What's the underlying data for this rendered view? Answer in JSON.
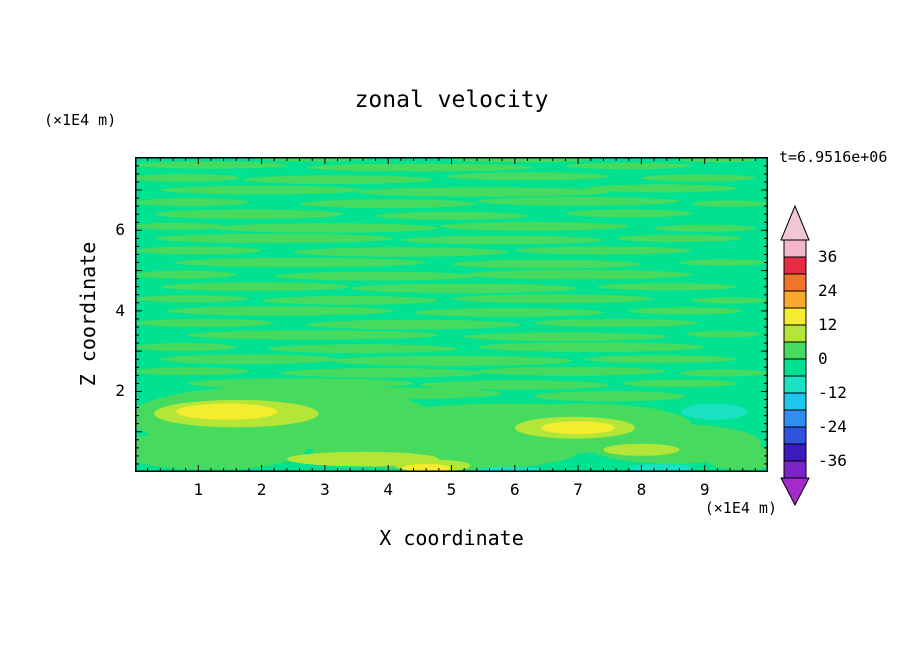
{
  "chart_data": {
    "type": "contour",
    "title": "zonal velocity",
    "timestamp": "t=6.9516e+06",
    "x_axis": {
      "label": "X coordinate",
      "unit": "(×1E4 m)",
      "min": 0,
      "max": 10,
      "labeled_ticks": [
        1,
        2,
        3,
        4,
        5,
        6,
        7,
        8,
        9
      ],
      "minor_tick_step": 0.2,
      "major_tick_step": 1
    },
    "z_axis": {
      "label": "Z coordinate",
      "unit": "(×1E4 m)",
      "min": 0,
      "max": 7.82,
      "labeled_ticks": [
        2,
        4,
        6
      ],
      "minor_tick_step": 0.2,
      "major_tick_step": 1
    },
    "colorbar": {
      "tick_labels": [
        "36",
        "24",
        "12",
        "0",
        "-12",
        "-24",
        "-36"
      ],
      "level_boundaries": [
        42,
        36,
        30,
        24,
        18,
        12,
        6,
        0,
        -6,
        -12,
        -18,
        -24,
        -30,
        -36,
        -42
      ],
      "above_max_color": "#F2C6D6",
      "below_min_color": "#A32CCB",
      "segments": [
        {
          "range": [
            36,
            42
          ],
          "color": "#F3B6CA"
        },
        {
          "range": [
            30,
            36
          ],
          "color": "#E62B44"
        },
        {
          "range": [
            24,
            30
          ],
          "color": "#F2742B"
        },
        {
          "range": [
            18,
            24
          ],
          "color": "#F7AA2C"
        },
        {
          "range": [
            12,
            18
          ],
          "color": "#F4EC2E"
        },
        {
          "range": [
            6,
            12
          ],
          "color": "#B4E637"
        },
        {
          "range": [
            0,
            6
          ],
          "color": "#46DB5E"
        },
        {
          "range": [
            -6,
            0
          ],
          "color": "#00E191"
        },
        {
          "range": [
            -12,
            -6
          ],
          "color": "#18E2C2"
        },
        {
          "range": [
            -18,
            -12
          ],
          "color": "#1CC6EE"
        },
        {
          "range": [
            -24,
            -18
          ],
          "color": "#2F8EF0"
        },
        {
          "range": [
            -30,
            -24
          ],
          "color": "#2F52E0"
        },
        {
          "range": [
            -36,
            -30
          ],
          "color": "#3A1CBE"
        },
        {
          "range": [
            -42,
            -36
          ],
          "color": "#7B22C8"
        }
      ]
    },
    "field": {
      "description": "mostly near-zero zonal velocity; horizontal streaks of 0..6 band over -6..0 background, yellow maxima near bottom at x≈1.5 and x≈7, cyan minimum near x≈9.2 z≈1.5",
      "background": {
        "level_range": [
          -6,
          0
        ],
        "color": "#00E191"
      },
      "draw_order": [
        "c1",
        "c2",
        "c3",
        "c4"
      ],
      "levels": {
        "c1": {
          "level_range": [
            0,
            6
          ],
          "color": "#46DB5E",
          "ellipses": [
            [
              1.2,
              7.62,
              1.2,
              0.09
            ],
            [
              4.5,
              7.56,
              1.8,
              0.1
            ],
            [
              7.8,
              7.6,
              1.0,
              0.08
            ],
            [
              2.8,
              7.78,
              0.9,
              0.07
            ],
            [
              6.1,
              7.76,
              1.1,
              0.07
            ],
            [
              9.2,
              7.75,
              0.6,
              0.06
            ],
            [
              0.8,
              7.3,
              0.85,
              0.1
            ],
            [
              3.2,
              7.26,
              1.5,
              0.11
            ],
            [
              6.2,
              7.34,
              1.3,
              0.1
            ],
            [
              8.9,
              7.3,
              0.9,
              0.09
            ],
            [
              2.0,
              7.0,
              1.6,
              0.11
            ],
            [
              5.5,
              6.95,
              2.0,
              0.12
            ],
            [
              8.3,
              7.04,
              1.2,
              0.1
            ],
            [
              0.9,
              6.7,
              0.9,
              0.1
            ],
            [
              4.0,
              6.66,
              1.4,
              0.11
            ],
            [
              7.0,
              6.72,
              1.6,
              0.11
            ],
            [
              9.4,
              6.66,
              0.6,
              0.08
            ],
            [
              1.8,
              6.4,
              1.5,
              0.12
            ],
            [
              5.0,
              6.36,
              1.2,
              0.1
            ],
            [
              7.8,
              6.42,
              1.0,
              0.1
            ],
            [
              0.7,
              6.1,
              0.7,
              0.09
            ],
            [
              3.0,
              6.06,
              1.8,
              0.12
            ],
            [
              6.3,
              6.1,
              1.5,
              0.11
            ],
            [
              9.0,
              6.05,
              0.8,
              0.09
            ],
            [
              2.2,
              5.8,
              1.9,
              0.12
            ],
            [
              5.8,
              5.76,
              1.6,
              0.11
            ],
            [
              8.6,
              5.8,
              1.0,
              0.09
            ],
            [
              1.0,
              5.5,
              1.0,
              0.1
            ],
            [
              4.2,
              5.46,
              1.7,
              0.12
            ],
            [
              7.4,
              5.5,
              1.4,
              0.1
            ],
            [
              2.6,
              5.2,
              2.0,
              0.12
            ],
            [
              6.5,
              5.16,
              1.5,
              0.11
            ],
            [
              9.3,
              5.2,
              0.7,
              0.08
            ],
            [
              0.8,
              4.9,
              0.8,
              0.1
            ],
            [
              3.8,
              4.86,
              1.6,
              0.11
            ],
            [
              7.0,
              4.9,
              1.8,
              0.12
            ],
            [
              1.9,
              4.6,
              1.5,
              0.11
            ],
            [
              5.2,
              4.56,
              1.8,
              0.12
            ],
            [
              8.4,
              4.6,
              1.1,
              0.09
            ],
            [
              0.9,
              4.3,
              0.9,
              0.09
            ],
            [
              3.4,
              4.26,
              1.4,
              0.11
            ],
            [
              6.6,
              4.3,
              1.6,
              0.11
            ],
            [
              9.4,
              4.26,
              0.6,
              0.08
            ],
            [
              2.3,
              4.0,
              1.8,
              0.12
            ],
            [
              5.9,
              3.96,
              1.5,
              0.11
            ],
            [
              8.7,
              4.0,
              0.9,
              0.09
            ],
            [
              1.1,
              3.7,
              1.1,
              0.1
            ],
            [
              4.4,
              3.66,
              1.7,
              0.12
            ],
            [
              7.6,
              3.7,
              1.3,
              0.1
            ],
            [
              2.8,
              3.4,
              2.0,
              0.12
            ],
            [
              6.8,
              3.36,
              1.6,
              0.11
            ],
            [
              9.3,
              3.42,
              0.6,
              0.08
            ],
            [
              0.8,
              3.1,
              0.8,
              0.1
            ],
            [
              3.6,
              3.06,
              1.5,
              0.11
            ],
            [
              7.2,
              3.1,
              1.8,
              0.12
            ],
            [
              1.8,
              2.8,
              1.4,
              0.12
            ],
            [
              5.0,
              2.76,
              1.9,
              0.13
            ],
            [
              8.3,
              2.8,
              1.2,
              0.1
            ],
            [
              0.9,
              2.5,
              0.9,
              0.1
            ],
            [
              3.9,
              2.46,
              1.6,
              0.12
            ],
            [
              6.9,
              2.5,
              1.5,
              0.11
            ],
            [
              9.3,
              2.46,
              0.7,
              0.09
            ],
            [
              2.6,
              2.2,
              1.8,
              0.13
            ],
            [
              6.0,
              2.16,
              1.5,
              0.12
            ],
            [
              8.6,
              2.2,
              0.9,
              0.1
            ],
            [
              3.5,
              1.95,
              2.3,
              0.16
            ],
            [
              7.5,
              1.88,
              1.2,
              0.13
            ],
            [
              2.3,
              1.35,
              2.4,
              0.8
            ],
            [
              5.9,
              1.05,
              2.6,
              0.65
            ],
            [
              7.1,
              1.15,
              1.7,
              0.55
            ],
            [
              1.2,
              0.55,
              1.5,
              0.5
            ],
            [
              4.9,
              0.5,
              2.1,
              0.45
            ],
            [
              8.5,
              0.7,
              1.4,
              0.5
            ],
            [
              9.6,
              0.35,
              0.6,
              0.3
            ]
          ]
        },
        "c2": {
          "level_range": [
            6,
            12
          ],
          "color": "#B4E637",
          "ellipses": [
            [
              1.6,
              1.45,
              1.3,
              0.34
            ],
            [
              6.95,
              1.1,
              0.95,
              0.27
            ],
            [
              3.6,
              0.32,
              1.2,
              0.18
            ],
            [
              4.7,
              0.16,
              0.6,
              0.15
            ],
            [
              8.0,
              0.55,
              0.6,
              0.15
            ]
          ]
        },
        "c3": {
          "level_range": [
            12,
            18
          ],
          "color": "#F4EC2E",
          "ellipses": [
            [
              1.45,
              1.5,
              0.8,
              0.2
            ],
            [
              7.0,
              1.1,
              0.58,
              0.16
            ],
            [
              4.6,
              0.1,
              0.38,
              0.1
            ]
          ]
        },
        "c4": {
          "level_range": [
            -12,
            -6
          ],
          "color": "#18E2C2",
          "ellipses": [
            [
              9.15,
              1.5,
              0.52,
              0.2
            ],
            [
              8.3,
              0.1,
              0.5,
              0.1
            ],
            [
              5.9,
              0.05,
              0.55,
              0.08
            ]
          ]
        }
      }
    }
  }
}
